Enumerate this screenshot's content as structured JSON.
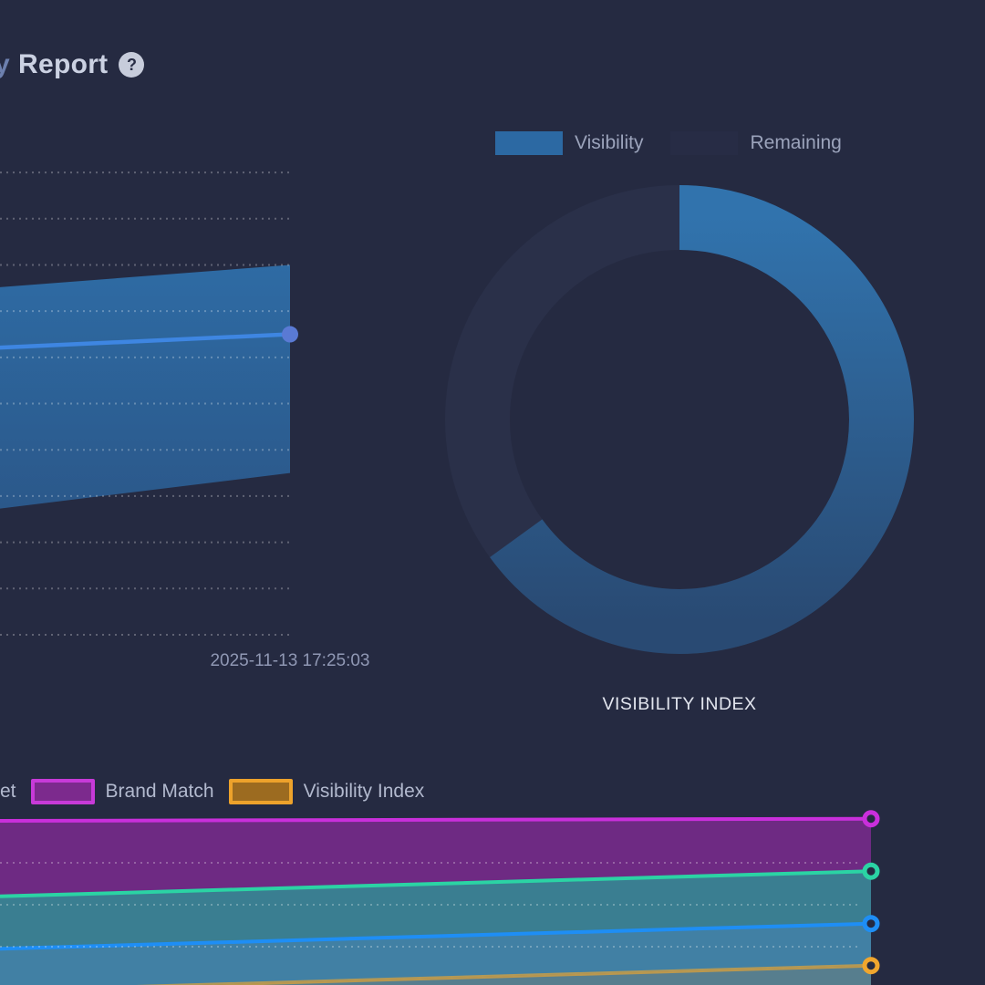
{
  "header": {
    "title_prefix": "y",
    "title_rest": "Report",
    "help_glyph": "?"
  },
  "top_legend": {
    "items": [
      {
        "label": "Visibility",
        "color": "#2c69a3"
      },
      {
        "label": "Remaining",
        "color": "#272c45"
      }
    ]
  },
  "bottom_legend": {
    "items": [
      {
        "label": "et",
        "truncated": true
      },
      {
        "label": "Brand Match",
        "swatch_border": "#c73ad8",
        "swatch_fill": "#7c2a8d"
      },
      {
        "label": "Visibility Index",
        "swatch_border": "#eda22b",
        "swatch_fill": "#9c6b20"
      }
    ]
  },
  "labels": {
    "timestamp": "2025-11-13 17:25:03",
    "donut_title": "VISIBILITY INDEX"
  },
  "chart_data": [
    {
      "id": "visibility-trend",
      "type": "area",
      "title": "",
      "x_tick_labels": [
        "2025-11-13 17:25:03"
      ],
      "ylim": [
        0,
        110
      ],
      "gridline_step": 10,
      "grid": "dotted-horizontal",
      "series": [
        {
          "name": "visibility-range-upper",
          "values": [
            75,
            80
          ]
        },
        {
          "name": "visibility-range-lower",
          "values": [
            27,
            35
          ]
        },
        {
          "name": "visibility-line",
          "values": [
            62,
            65
          ]
        }
      ],
      "colors": {
        "band_top": "#2e6ba4",
        "band_bottom": "#2b588a",
        "line": "#3e86e2",
        "marker": "#5a7ad4"
      }
    },
    {
      "id": "visibility-index-donut",
      "type": "pie",
      "title": "VISIBILITY INDEX",
      "legend_position": "top",
      "slices": [
        {
          "label": "Visibility",
          "value": 65,
          "color": "#2d6ba3"
        },
        {
          "label": "Remaining",
          "value": 35,
          "color": "#2a3049"
        }
      ],
      "donut_gradient": [
        "#3173ad",
        "#294a73"
      ]
    },
    {
      "id": "metrics-trend",
      "type": "area",
      "title": "",
      "ylim": [
        21,
        63
      ],
      "gridline_values": [
        30,
        40,
        50
      ],
      "grid": "dotted-horizontal",
      "legend_visible_labels": [
        "et",
        "Brand Match",
        "Visibility Index"
      ],
      "series": [
        {
          "name": "Brand Match",
          "line": "#c92fdb",
          "fill": "#6e2a83",
          "values": [
            60,
            60.5
          ],
          "line_opacity": 1
        },
        {
          "name": "teal-series",
          "line": "#2bd3a4",
          "fill": "#3a7e91",
          "values": [
            42,
            48
          ],
          "line_opacity": 1
        },
        {
          "name": "blue-series",
          "line": "#1e8ef5",
          "fill": "#4180a4",
          "values": [
            29.5,
            35.5
          ],
          "line_opacity": 1
        },
        {
          "name": "Visibility Index",
          "line": "#f0a62e",
          "fill": "#577e8e",
          "values": [
            19.5,
            25.5
          ],
          "line_opacity": 0.65
        }
      ]
    }
  ]
}
